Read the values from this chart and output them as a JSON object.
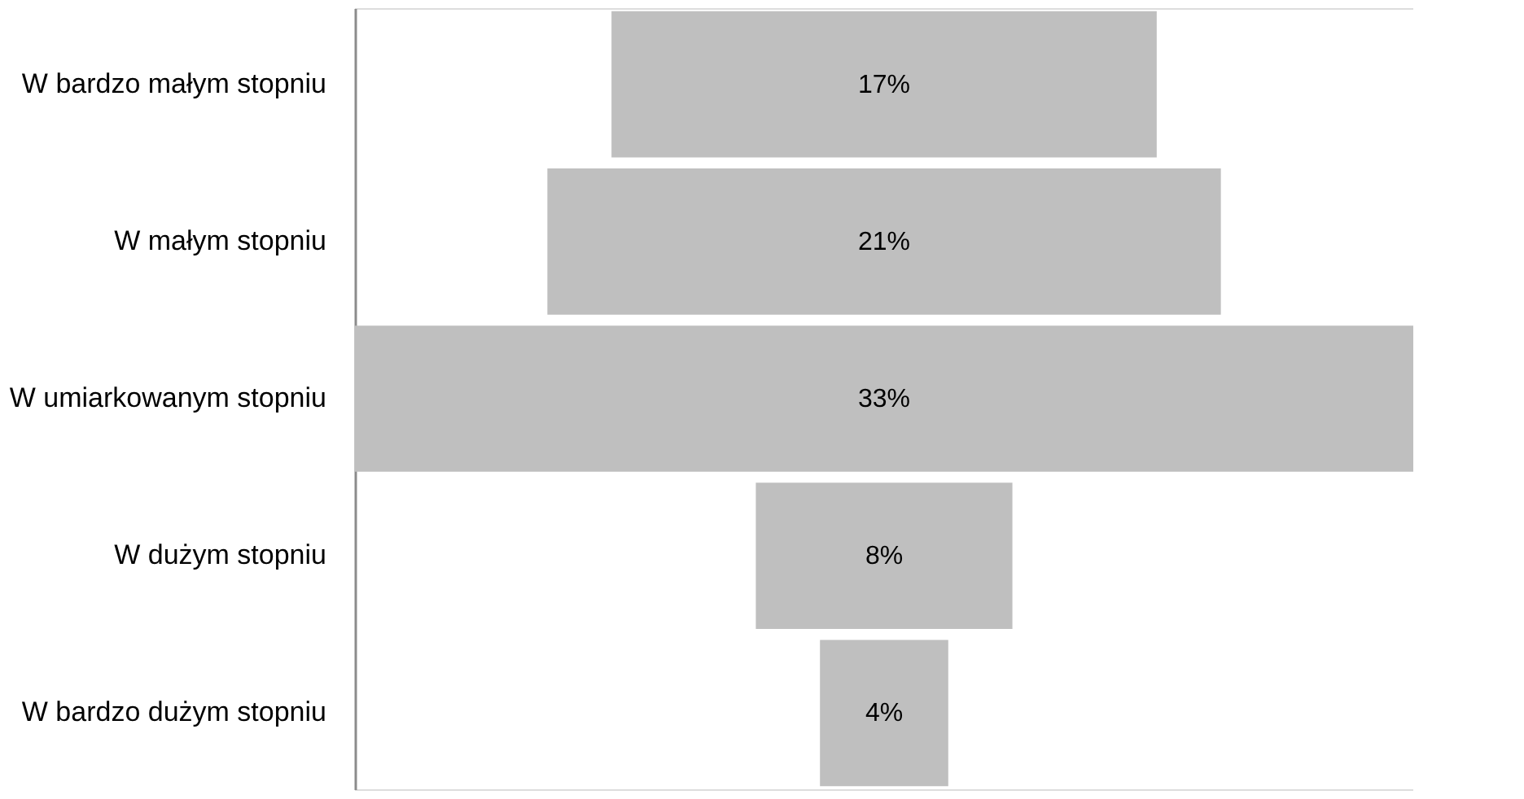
{
  "chart_data": {
    "type": "other",
    "categories": [
      "W bardzo małym stopniu",
      "W małym stopniu",
      "W umiarkowanym stopniu",
      "W dużym stopniu",
      "W bardzo dużym stopniu"
    ],
    "values": [
      17,
      21,
      33,
      8,
      4
    ],
    "value_labels": [
      "17%",
      "21%",
      "33%",
      "8%",
      "4%"
    ],
    "color": "#bfbfbf"
  }
}
